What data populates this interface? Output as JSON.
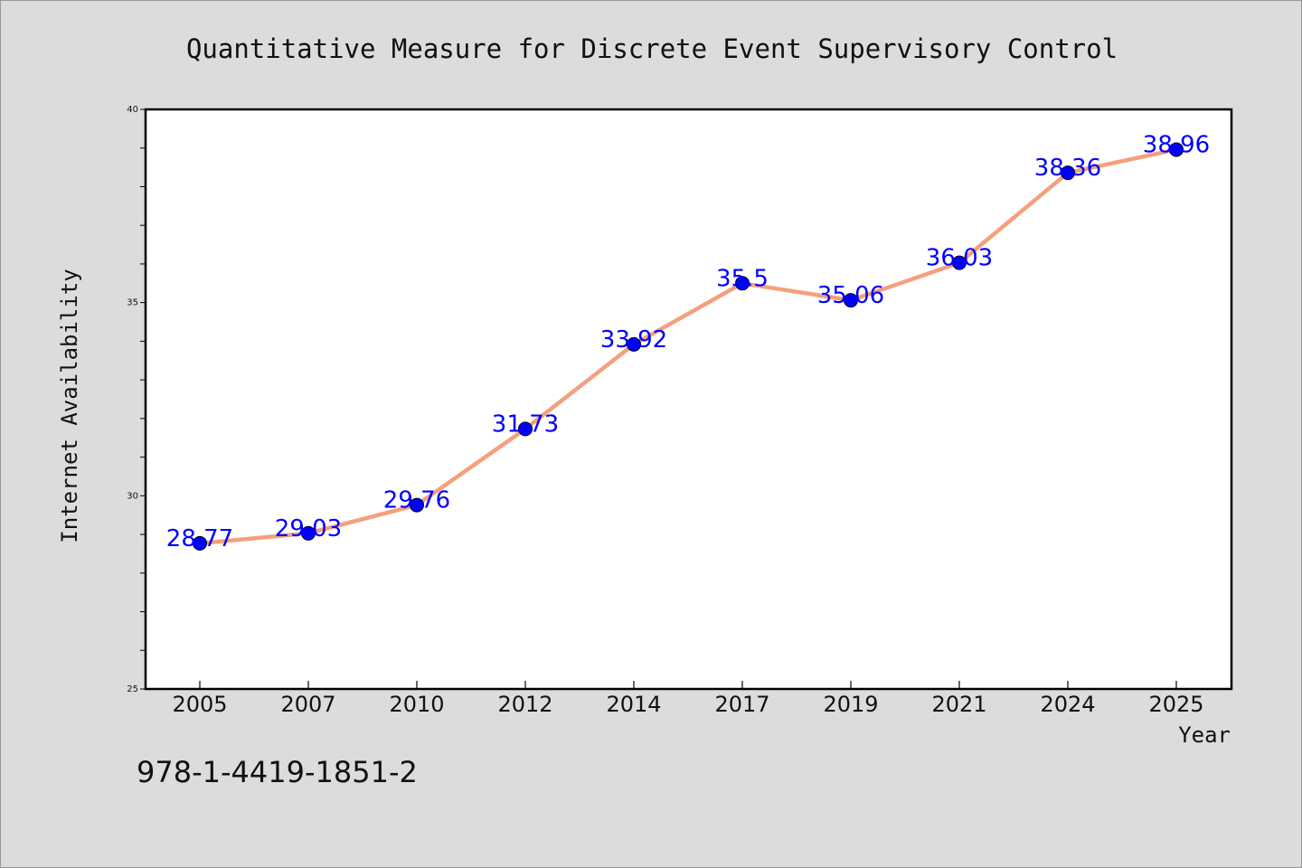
{
  "chart_data": {
    "type": "line",
    "title": "Quantitative Measure for Discrete Event Supervisory Control",
    "xlabel": "Year",
    "ylabel": "Internet Availability",
    "categories": [
      "2005",
      "2007",
      "2010",
      "2012",
      "2014",
      "2017",
      "2019",
      "2021",
      "2024",
      "2025"
    ],
    "series": [
      {
        "values": [
          28.77,
          29.03,
          29.76,
          31.73,
          33.92,
          35.5,
          35.06,
          36.03,
          38.36,
          38.96
        ],
        "data_labels": [
          "28.77",
          "29.03",
          "29.76",
          "31.73",
          "33.92",
          "35.5",
          "35.06",
          "36.03",
          "38.36",
          "38.96"
        ]
      }
    ],
    "ylim": [
      25,
      40
    ],
    "yticks": [
      "25",
      "30",
      "35",
      "40"
    ],
    "grid": false,
    "legend": "none",
    "colors": {
      "line": "#f4a07e",
      "marker": "#0000ff",
      "label": "#0000ff"
    }
  },
  "footer": {
    "isbn": "978-1-4419-1851-2"
  }
}
